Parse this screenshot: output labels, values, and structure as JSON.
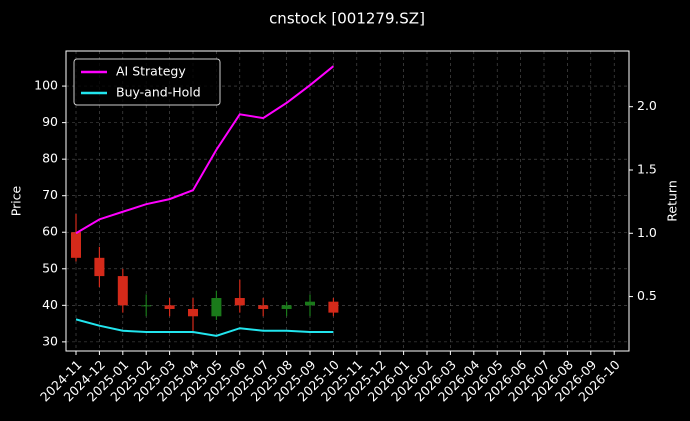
{
  "chart_data": {
    "type": "candlestick",
    "title": "cnstock [001279.SZ]",
    "y_label": "Price",
    "y2_label": "Return",
    "x": [
      "2024-11",
      "2024-12",
      "2025-01",
      "2025-02",
      "2025-03",
      "2025-04",
      "2025-05",
      "2025-06",
      "2025-07",
      "2025-08",
      "2025-09",
      "2025-10"
    ],
    "open": [
      60,
      53,
      48,
      40,
      40,
      39,
      37,
      42,
      40,
      39,
      40,
      41
    ],
    "high": [
      65,
      56,
      50,
      43,
      42,
      42,
      44,
      47,
      42,
      41,
      43,
      42
    ],
    "low": [
      52,
      45,
      38,
      37,
      37,
      33,
      36,
      38,
      37,
      37,
      37,
      37
    ],
    "close": [
      53,
      48,
      40,
      40,
      39,
      37,
      42,
      40,
      39,
      40,
      41,
      38
    ],
    "up_color": "#1a7a1a",
    "down_color": "#d42a1a",
    "series": [
      {
        "name": "AI Strategy",
        "type": "line",
        "axis": "y2",
        "color": "#ff00ff",
        "values": [
          1.0,
          1.11,
          1.17,
          1.23,
          1.27,
          1.34,
          1.66,
          1.94,
          1.91,
          2.03,
          2.17,
          2.32
        ]
      },
      {
        "name": "Buy-and-Hold",
        "type": "line",
        "axis": "y2",
        "color": "#22e5ee",
        "values": [
          0.32,
          0.27,
          0.23,
          0.22,
          0.22,
          0.22,
          0.19,
          0.25,
          0.23,
          0.23,
          0.22,
          0.22
        ]
      }
    ],
    "xticks": [
      "2024-11",
      "2024-12",
      "2025-01",
      "2025-02",
      "2025-03",
      "2025-04",
      "2025-05",
      "2025-06",
      "2025-07",
      "2025-08",
      "2025-09",
      "2025-10",
      "2025-11",
      "2025-12",
      "2026-01",
      "2026-02",
      "2026-03",
      "2026-04",
      "2026-05",
      "2026-06",
      "2026-07",
      "2026-08",
      "2026-09",
      "2026-10"
    ],
    "ylim": [
      27.5,
      109.6
    ],
    "yticks": [
      30,
      40,
      50,
      60,
      70,
      80,
      90,
      100
    ],
    "y2lim": [
      0.07,
      2.44
    ],
    "y2ticks": [
      {
        "value": 0.5,
        "label": "0.5"
      },
      {
        "value": 1,
        "label": "1.0"
      },
      {
        "value": 1.5,
        "label": "1.5"
      },
      {
        "value": 2,
        "label": "2.0"
      }
    ],
    "grid": true,
    "legend": "upper left"
  }
}
